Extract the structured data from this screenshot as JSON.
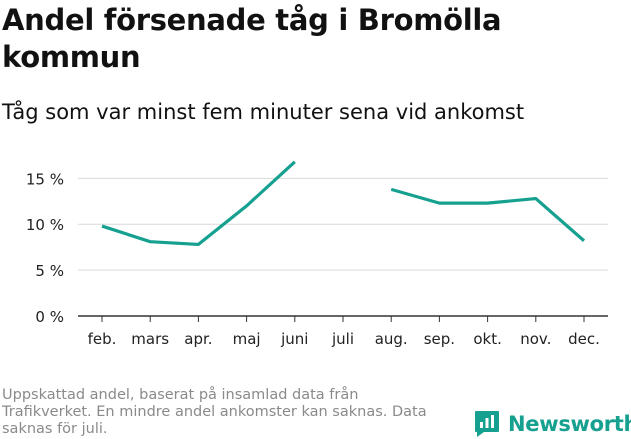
{
  "header": {
    "title": "Andel försenade tåg i Bromölla kommun",
    "subtitle": "Tåg som var minst fem minuter sena vid ankomst"
  },
  "footer": {
    "note": "Uppskattad andel, baserat på insamlad data från Trafikverket. En mindre andel ankomster kan saknas. Data saknas för juli.",
    "brand": "Newsworthy"
  },
  "colors": {
    "line": "#16a08f",
    "grid": "#d9d9d9",
    "axis": "#333333",
    "brand": "#16a08f"
  },
  "chart_data": {
    "type": "line",
    "title": "Andel försenade tåg i Bromölla kommun",
    "subtitle": "Tåg som var minst fem minuter sena vid ankomst",
    "xlabel": "",
    "ylabel": "",
    "categories": [
      "feb.",
      "mars",
      "apr.",
      "maj",
      "juni",
      "juli",
      "aug.",
      "sep.",
      "okt.",
      "nov.",
      "dec."
    ],
    "series": [
      {
        "values": [
          9.8,
          8.1,
          7.8,
          12.0,
          16.8,
          null,
          13.8,
          12.3,
          12.3,
          12.8,
          8.2
        ]
      }
    ],
    "yticks": [
      0,
      5,
      10,
      15
    ],
    "ytick_labels": [
      "0 %",
      "5 %",
      "10 %",
      "15 %"
    ],
    "ylim": [
      0,
      17
    ],
    "grid": true,
    "legend": "none"
  }
}
